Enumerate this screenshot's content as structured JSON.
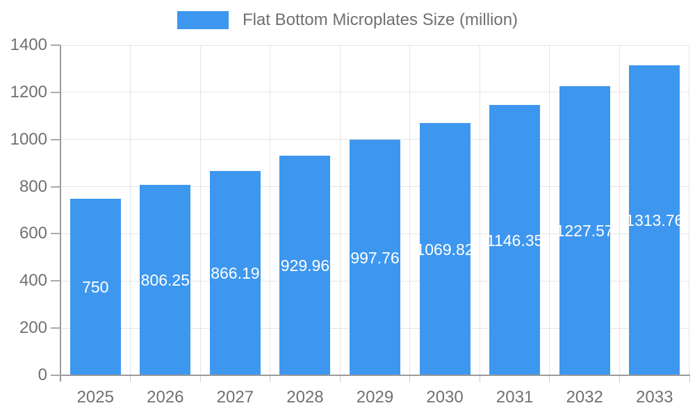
{
  "chart_data": {
    "type": "bar",
    "title": "Flat Bottom Microplates Size (million)",
    "categories": [
      "2025",
      "2026",
      "2027",
      "2028",
      "2029",
      "2030",
      "2031",
      "2032",
      "2033"
    ],
    "series": [
      {
        "name": "Flat Bottom Microplates Size (million)",
        "values": [
          750,
          806.25,
          866.19,
          929.96,
          997.76,
          1069.82,
          1146.35,
          1227.57,
          1313.76
        ]
      }
    ],
    "value_labels": [
      "750",
      "806.25",
      "866.19",
      "929.96",
      "997.76",
      "1069.82",
      "1146.35",
      "1227.57",
      "1313.76"
    ],
    "xlabel": "",
    "ylabel": "",
    "ylim": [
      0,
      1400
    ],
    "yticks": [
      0,
      200,
      400,
      600,
      800,
      1000,
      1200,
      1400
    ],
    "ytick_labels": [
      "0",
      "200",
      "400",
      "600",
      "800",
      "1000",
      "1200",
      "1400"
    ],
    "grid": true,
    "legend_position": "top",
    "colors": {
      "bar": "#3E97EE",
      "grid": "#e4e4e4",
      "axis_line": "#9a9a9a",
      "axis_text": "#707070",
      "value_label_text": "#ffffff"
    }
  }
}
